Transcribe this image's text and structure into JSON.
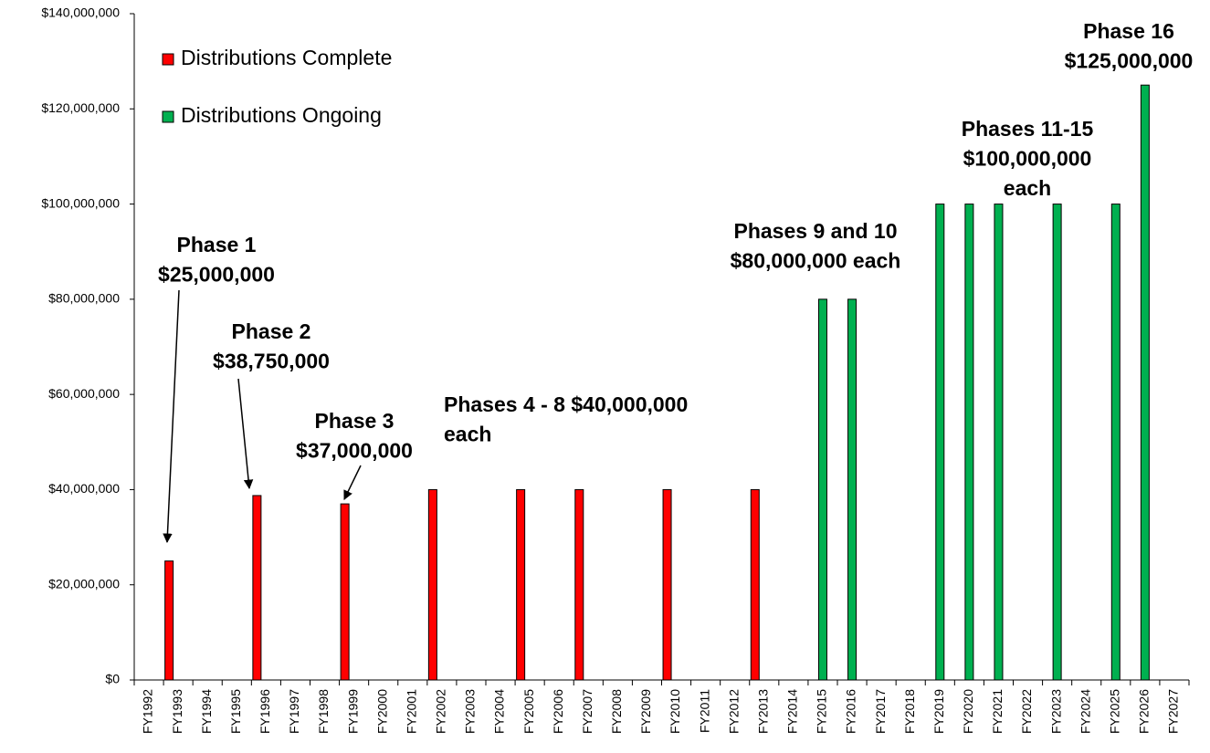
{
  "chart_data": {
    "type": "bar",
    "categories": [
      "FY1992",
      "FY1993",
      "FY1994",
      "FY1995",
      "FY1996",
      "FY1997",
      "FY1998",
      "FY1999",
      "FY2000",
      "FY2001",
      "FY2002",
      "FY2003",
      "FY2004",
      "FY2005",
      "FY2006",
      "FY2007",
      "FY2008",
      "FY2009",
      "FY2010",
      "FY2011",
      "FY2012",
      "FY2013",
      "FY2014",
      "FY2015",
      "FY2016",
      "FY2017",
      "FY2018",
      "FY2019",
      "FY2020",
      "FY2021",
      "FY2022",
      "FY2023",
      "FY2024",
      "FY2025",
      "FY2026",
      "FY2027"
    ],
    "series": [
      {
        "name": "Distributions Complete",
        "color": "#ff0000",
        "values": [
          null,
          25000000,
          null,
          null,
          38750000,
          null,
          null,
          37000000,
          null,
          null,
          40000000,
          null,
          null,
          40000000,
          null,
          40000000,
          null,
          null,
          40000000,
          null,
          null,
          40000000,
          null,
          null,
          null,
          null,
          null,
          null,
          null,
          null,
          null,
          null,
          null,
          null,
          null,
          null
        ]
      },
      {
        "name": "Distributions Ongoing",
        "color": "#00b050",
        "values": [
          null,
          null,
          null,
          null,
          null,
          null,
          null,
          null,
          null,
          null,
          null,
          null,
          null,
          null,
          null,
          null,
          null,
          null,
          null,
          null,
          null,
          null,
          null,
          80000000,
          80000000,
          null,
          null,
          100000000,
          100000000,
          100000000,
          null,
          100000000,
          null,
          100000000,
          125000000,
          null
        ]
      }
    ],
    "ylim": [
      0,
      140000000
    ],
    "yticks": [
      {
        "value": 0,
        "label": "$0"
      },
      {
        "value": 20000000,
        "label": "$20,000,000"
      },
      {
        "value": 40000000,
        "label": "$40,000,000"
      },
      {
        "value": 60000000,
        "label": "$60,000,000"
      },
      {
        "value": 80000000,
        "label": "$80,000,000"
      },
      {
        "value": 100000000,
        "label": "$100,000,000"
      },
      {
        "value": 120000000,
        "label": "$120,000,000"
      },
      {
        "value": 140000000,
        "label": "$140,000,000"
      }
    ],
    "grid": false,
    "legend": "upper left",
    "annotations": [
      {
        "lines": [
          "Phase 1",
          "$25,000,000"
        ]
      },
      {
        "lines": [
          "Phase 2",
          "$38,750,000"
        ]
      },
      {
        "lines": [
          "Phase 3",
          "$37,000,000"
        ]
      },
      {
        "lines": [
          "Phases 4 - 8 $40,000,000",
          "each"
        ]
      },
      {
        "lines": [
          "Phases 9 and 10",
          "$80,000,000 each"
        ]
      },
      {
        "lines": [
          "Phases 11-15",
          "$100,000,000",
          "each"
        ]
      },
      {
        "lines": [
          "Phase 16",
          "$125,000,000"
        ]
      }
    ]
  }
}
